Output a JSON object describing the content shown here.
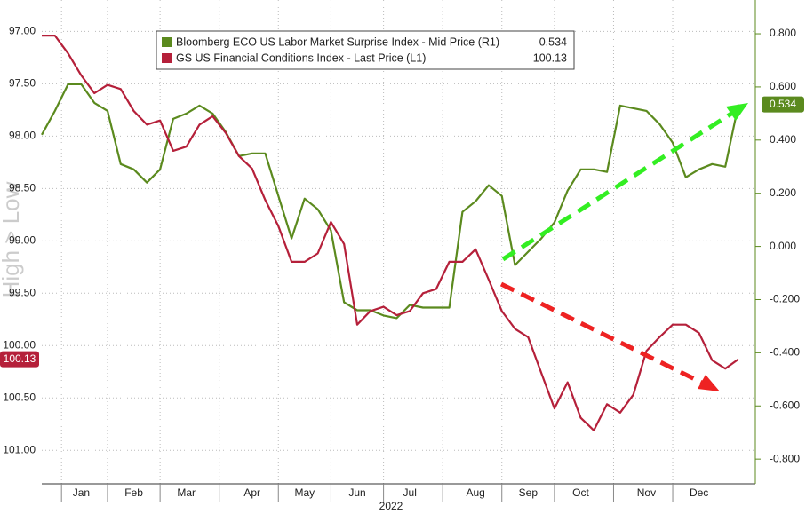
{
  "chart_data": {
    "type": "line",
    "xlabel": "2022",
    "ylabel": "High > Low",
    "y_inverted": true,
    "grid": true,
    "legend": "top",
    "categories": [
      null,
      null,
      null,
      "Jan",
      null,
      null,
      null,
      "Feb",
      null,
      null,
      null,
      "Mar",
      null,
      null,
      null,
      null,
      "Apr",
      null,
      null,
      null,
      "May",
      null,
      null,
      null,
      "Jun",
      null,
      null,
      null,
      "Jul",
      null,
      null,
      null,
      null,
      "Aug",
      null,
      null,
      null,
      "Sep",
      null,
      null,
      null,
      "Oct",
      null,
      null,
      null,
      null,
      "Nov",
      null,
      null,
      null,
      "Dec",
      null,
      null,
      null
    ],
    "series": [
      {
        "name": "Bloomberg ECO US Labor Market Surprise Index - Mid Price (R1)",
        "color": "#5b8a1e",
        "axis": "y2",
        "values": [
          0.42,
          0.51,
          0.61,
          0.61,
          0.54,
          0.51,
          0.31,
          0.29,
          0.24,
          0.29,
          0.48,
          0.5,
          0.53,
          0.5,
          0.43,
          0.34,
          0.35,
          0.35,
          0.19,
          0.03,
          0.18,
          0.14,
          0.06,
          -0.21,
          -0.24,
          -0.24,
          -0.26,
          -0.27,
          -0.22,
          -0.23,
          -0.23,
          -0.23,
          0.13,
          0.17,
          0.23,
          0.19,
          -0.07,
          -0.02,
          0.03,
          0.09,
          0.21,
          0.29,
          0.29,
          0.28,
          0.53,
          0.52,
          0.51,
          0.46,
          0.39,
          0.26,
          0.29,
          0.31,
          0.3,
          0.534
        ]
      },
      {
        "name": "GS US Financial Conditions Index - Last Price (L1)",
        "color": "#b5203a",
        "axis": "y",
        "values": [
          97.04,
          97.04,
          97.21,
          97.42,
          97.59,
          97.51,
          97.55,
          97.76,
          97.89,
          97.85,
          98.14,
          98.1,
          97.89,
          97.81,
          97.97,
          98.19,
          98.31,
          98.61,
          98.86,
          99.2,
          99.2,
          99.12,
          98.82,
          99.03,
          99.8,
          99.67,
          99.63,
          99.71,
          99.67,
          99.5,
          99.46,
          99.2,
          99.2,
          99.08,
          99.37,
          99.67,
          99.84,
          99.92,
          100.26,
          100.6,
          100.35,
          100.69,
          100.81,
          100.56,
          100.64,
          100.47,
          100.05,
          99.92,
          99.8,
          99.8,
          99.88,
          100.14,
          100.22,
          100.13
        ]
      }
    ],
    "ylim": [
      96.7,
      101.32
    ],
    "yticks": [
      {
        "value": 97,
        "label": "97.00"
      },
      {
        "value": 97.5,
        "label": "97.50"
      },
      {
        "value": 98,
        "label": "98.00"
      },
      {
        "value": 98.5,
        "label": "98.50"
      },
      {
        "value": 99,
        "label": "99.00"
      },
      {
        "value": 99.5,
        "label": "99.50"
      },
      {
        "value": 100,
        "label": "100.00"
      },
      {
        "value": 100.5,
        "label": "100.50"
      },
      {
        "value": 101,
        "label": "101.00"
      }
    ],
    "y2lim": [
      -0.893,
      0.927
    ],
    "y2ticks": [
      {
        "value": 0.8,
        "label": "0.800"
      },
      {
        "value": 0.6,
        "label": "0.600"
      },
      {
        "value": 0.4,
        "label": "0.400"
      },
      {
        "value": 0.2,
        "label": "0.200"
      },
      {
        "value": 0,
        "label": "0.000"
      },
      {
        "value": -0.2,
        "label": "-0.200"
      },
      {
        "value": -0.4,
        "label": "-0.400"
      },
      {
        "value": -0.6,
        "label": "-0.600"
      },
      {
        "value": -0.8,
        "label": "-0.800"
      }
    ]
  }
}
